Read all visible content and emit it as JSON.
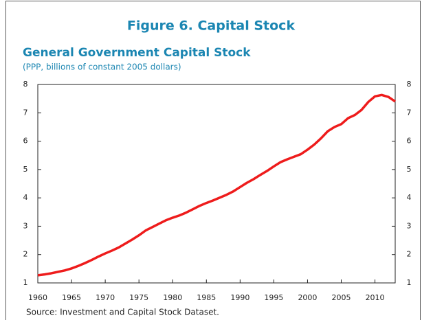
{
  "chart_data": {
    "type": "line",
    "title": "Figure 6. Capital Stock",
    "subtitle": "General Government Capital Stock",
    "y_label": "(PPP, billions of constant 2005 dollars)",
    "source": "Source: Investment and Capital Stock Dataset.",
    "x": [
      1960,
      1961,
      1962,
      1963,
      1964,
      1965,
      1966,
      1967,
      1968,
      1969,
      1970,
      1971,
      1972,
      1973,
      1974,
      1975,
      1976,
      1977,
      1978,
      1979,
      1980,
      1981,
      1982,
      1983,
      1984,
      1985,
      1986,
      1987,
      1988,
      1989,
      1990,
      1991,
      1992,
      1993,
      1994,
      1995,
      1996,
      1997,
      1998,
      1999,
      2000,
      2001,
      2002,
      2003,
      2004,
      2005,
      2006,
      2007,
      2008,
      2009,
      2010,
      2011,
      2012,
      2013
    ],
    "series": [
      {
        "name": "General Government Capital Stock",
        "color": "#ee1c1c",
        "values": [
          1.27,
          1.3,
          1.34,
          1.39,
          1.44,
          1.51,
          1.6,
          1.7,
          1.81,
          1.93,
          2.04,
          2.14,
          2.25,
          2.39,
          2.53,
          2.68,
          2.85,
          2.97,
          3.09,
          3.21,
          3.3,
          3.38,
          3.48,
          3.6,
          3.72,
          3.82,
          3.91,
          4.01,
          4.11,
          4.23,
          4.38,
          4.53,
          4.66,
          4.81,
          4.95,
          5.11,
          5.26,
          5.36,
          5.45,
          5.54,
          5.7,
          5.88,
          6.1,
          6.35,
          6.5,
          6.6,
          6.81,
          6.92,
          7.1,
          7.38,
          7.58,
          7.63,
          7.56,
          7.4
        ]
      }
    ],
    "xlim": [
      1960,
      2013
    ],
    "xticks": [
      1960,
      1965,
      1970,
      1975,
      1980,
      1985,
      1990,
      1995,
      2000,
      2005,
      2010
    ],
    "ylim": [
      1,
      8
    ],
    "yticks": [
      1,
      2,
      3,
      4,
      5,
      6,
      7,
      8
    ]
  }
}
